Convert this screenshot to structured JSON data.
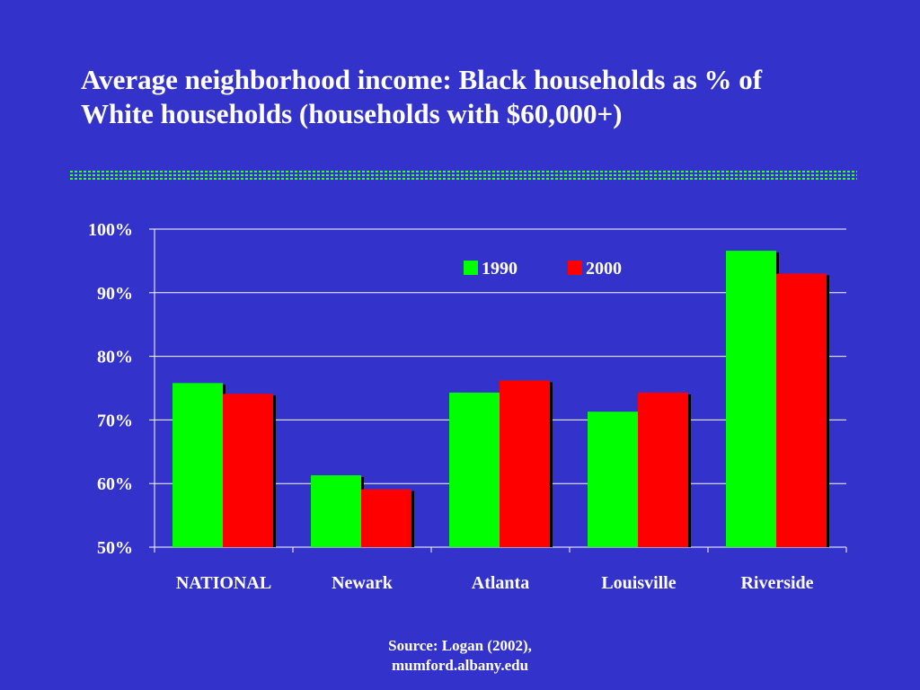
{
  "slide": {
    "title_line1": "Average neighborhood income: Black households as % of",
    "title_line2": "White households (households with $60,000+)",
    "source_line1": "Source: Logan (2002),",
    "source_line2": "mumford.albany.edu"
  },
  "colors": {
    "background": "#3333cc",
    "divider": "#33ff33",
    "series_1990": "#00ff00",
    "series_2000": "#ff0000",
    "gridline": "#ffffff",
    "text": "#ffffff"
  },
  "chart_data": {
    "type": "bar",
    "categories": [
      "NATIONAL",
      "Newark",
      "Atlanta",
      "Louisville",
      "Riverside"
    ],
    "series": [
      {
        "name": "1990",
        "values": [
          75.8,
          61.3,
          74.3,
          71.3,
          96.6
        ],
        "color": "#00ff00"
      },
      {
        "name": "2000",
        "values": [
          74.1,
          59.1,
          76.2,
          74.3,
          93.0
        ],
        "color": "#ff0000"
      }
    ],
    "yticks": [
      "50%",
      "60%",
      "70%",
      "80%",
      "90%",
      "100%"
    ],
    "ylim": [
      50,
      100
    ],
    "grid": true,
    "legend": "top-center"
  }
}
